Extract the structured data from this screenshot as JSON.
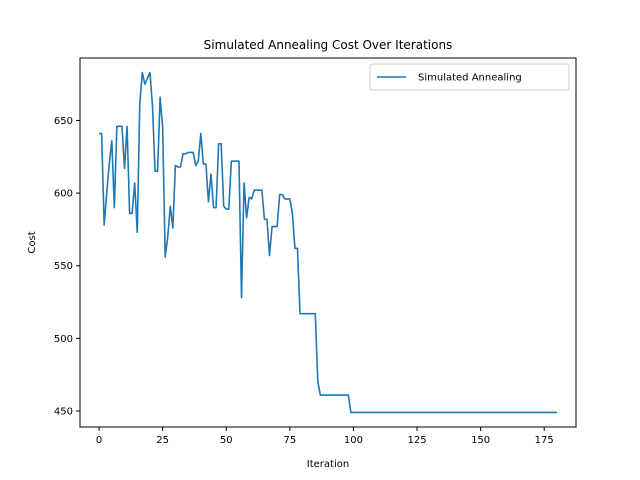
{
  "chart_data": {
    "type": "line",
    "title": "Simulated Annealing Cost Over Iterations",
    "xlabel": "Iteration",
    "ylabel": "Cost",
    "xlim": [
      -7.5,
      187.5
    ],
    "ylim": [
      439,
      693
    ],
    "xticks": [
      0,
      25,
      50,
      75,
      100,
      125,
      150,
      175
    ],
    "yticks": [
      450,
      500,
      550,
      600,
      650
    ],
    "grid": false,
    "legend_position": "top-right",
    "series": [
      {
        "name": "Simulated Annealing",
        "color": "#1f77b4",
        "x": [
          0,
          1,
          2,
          3,
          4,
          5,
          6,
          7,
          8,
          9,
          10,
          11,
          12,
          13,
          14,
          15,
          16,
          17,
          18,
          19,
          20,
          21,
          22,
          23,
          24,
          25,
          26,
          27,
          28,
          29,
          30,
          31,
          32,
          33,
          34,
          35,
          36,
          37,
          38,
          39,
          40,
          41,
          42,
          43,
          44,
          45,
          46,
          47,
          48,
          49,
          50,
          51,
          52,
          53,
          54,
          55,
          56,
          57,
          58,
          59,
          60,
          61,
          62,
          63,
          64,
          65,
          66,
          67,
          68,
          69,
          70,
          71,
          72,
          73,
          74,
          75,
          76,
          77,
          78,
          79,
          80,
          81,
          82,
          83,
          84,
          85,
          86,
          87,
          88,
          89,
          90,
          91,
          92,
          93,
          94,
          95,
          96,
          97,
          98,
          99,
          100,
          180
        ],
        "values": [
          641,
          641,
          578,
          600,
          620,
          636,
          590,
          646,
          646,
          646,
          617,
          646,
          586,
          586,
          607,
          573,
          661,
          683,
          675,
          679,
          683,
          660,
          615,
          615,
          666,
          645,
          556,
          570,
          591,
          576,
          619,
          618,
          618,
          627,
          627,
          628,
          628,
          628,
          619,
          622,
          641,
          620,
          620,
          594,
          613,
          590,
          590,
          634,
          634,
          591,
          589,
          589,
          622,
          622,
          622,
          622,
          528,
          607,
          583,
          597,
          596,
          602,
          602,
          602,
          602,
          582,
          582,
          557,
          577,
          577,
          577,
          599,
          599,
          596,
          596,
          596,
          586,
          562,
          562,
          517,
          517,
          517,
          517,
          517,
          517,
          517,
          470,
          461,
          461,
          461,
          461,
          461,
          461,
          461,
          461,
          461,
          461,
          461,
          461,
          449,
          449,
          449
        ]
      }
    ]
  }
}
